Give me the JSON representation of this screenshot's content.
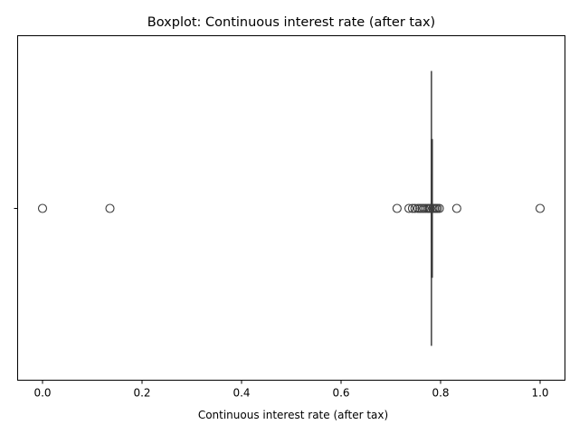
{
  "chart_data": {
    "type": "boxplot",
    "orientation": "horizontal",
    "title": "Boxplot:  Continuous interest rate (after tax)",
    "xlabel": "Continuous interest rate (after tax)",
    "ylabel": "",
    "xlim": [
      -0.05,
      1.05
    ],
    "xticks": [
      0.0,
      0.2,
      0.4,
      0.6,
      0.8,
      1.0
    ],
    "xtick_labels": [
      "0.0",
      "0.2",
      "0.4",
      "0.6",
      "0.8",
      "1.0"
    ],
    "grid": false,
    "box": {
      "whisker_low": 0.7815,
      "q1": 0.7815,
      "median": 0.7816,
      "q3": 0.7817,
      "whisker_high": 0.7818
    },
    "outliers": [
      0.0,
      0.1355,
      0.7125,
      0.7365,
      0.7435,
      0.7485,
      0.7545,
      0.7585,
      0.7625,
      0.7665,
      0.7705,
      0.7745,
      0.7775,
      0.7795,
      0.7845,
      0.7875,
      0.7905,
      0.7935,
      0.7975,
      0.8325,
      1.0
    ],
    "colors": {
      "line": "#3d3d3d",
      "outlier_edge": "#3d3d3d",
      "axes": "#000000"
    }
  }
}
